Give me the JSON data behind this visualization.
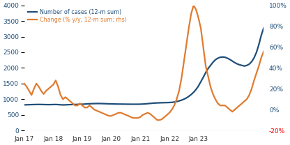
{
  "legend_blue": "Number of cases (12-m sum)",
  "legend_orange": "Change (% y/y, 12-m sum; rhs)",
  "left_ylim": [
    0,
    4000
  ],
  "left_yticks": [
    0,
    500,
    1000,
    1500,
    2000,
    2500,
    3000,
    3500,
    4000
  ],
  "right_ylim": [
    -0.2,
    1.0
  ],
  "right_yticks": [
    -0.2,
    0.0,
    0.2,
    0.4,
    0.6,
    0.8,
    1.0
  ],
  "right_yticklabels": [
    "-20%",
    "0%",
    "20%",
    "40%",
    "60%",
    "80%",
    "100%"
  ],
  "color_blue": "#1f4e79",
  "color_orange": "#e07b30",
  "line_width": 1.6,
  "blue_data": [
    820,
    822,
    825,
    828,
    830,
    832,
    833,
    832,
    830,
    828,
    827,
    828,
    830,
    832,
    828,
    822,
    818,
    820,
    825,
    828,
    830,
    832,
    835,
    838,
    840,
    845,
    850,
    855,
    858,
    860,
    862,
    862,
    860,
    858,
    855,
    852,
    850,
    848,
    846,
    845,
    844,
    843,
    842,
    841,
    840,
    840,
    840,
    840,
    842,
    845,
    850,
    858,
    865,
    872,
    878,
    882,
    885,
    888,
    890,
    892,
    895,
    900,
    910,
    925,
    945,
    970,
    1000,
    1040,
    1090,
    1150,
    1220,
    1310,
    1420,
    1560,
    1700,
    1850,
    1980,
    2080,
    2180,
    2260,
    2310,
    2340,
    2350,
    2340,
    2310,
    2270,
    2220,
    2170,
    2130,
    2100,
    2080,
    2060,
    2080,
    2120,
    2200,
    2320,
    2500,
    2750,
    3050,
    3280
  ],
  "orange_data": [
    0.25,
    0.22,
    0.18,
    0.14,
    0.2,
    0.25,
    0.22,
    0.18,
    0.15,
    0.18,
    0.2,
    0.22,
    0.24,
    0.28,
    0.22,
    0.14,
    0.1,
    0.12,
    0.1,
    0.08,
    0.06,
    0.04,
    0.04,
    0.06,
    0.04,
    0.02,
    0.02,
    0.04,
    0.02,
    0.0,
    -0.01,
    -0.02,
    -0.03,
    -0.04,
    -0.05,
    -0.06,
    -0.06,
    -0.05,
    -0.04,
    -0.03,
    -0.03,
    -0.04,
    -0.05,
    -0.06,
    -0.07,
    -0.08,
    -0.08,
    -0.08,
    -0.07,
    -0.05,
    -0.04,
    -0.03,
    -0.04,
    -0.06,
    -0.08,
    -0.1,
    -0.1,
    -0.09,
    -0.07,
    -0.05,
    -0.03,
    0.0,
    0.04,
    0.1,
    0.18,
    0.3,
    0.46,
    0.62,
    0.78,
    0.92,
    1.0,
    0.96,
    0.88,
    0.78,
    0.6,
    0.42,
    0.32,
    0.22,
    0.15,
    0.1,
    0.06,
    0.04,
    0.04,
    0.04,
    0.02,
    0.0,
    -0.02,
    0.0,
    0.02,
    0.04,
    0.06,
    0.08,
    0.1,
    0.14,
    0.2,
    0.28,
    0.35,
    0.42,
    0.5,
    0.56
  ],
  "xtick_positions": [
    0,
    12,
    24,
    36,
    48,
    60,
    72
  ],
  "xtick_labels": [
    "Jan 17",
    "Jan 18",
    "Jan 19",
    "Jan 20",
    "Jan 21",
    "Jan 22",
    "Jan 23"
  ]
}
